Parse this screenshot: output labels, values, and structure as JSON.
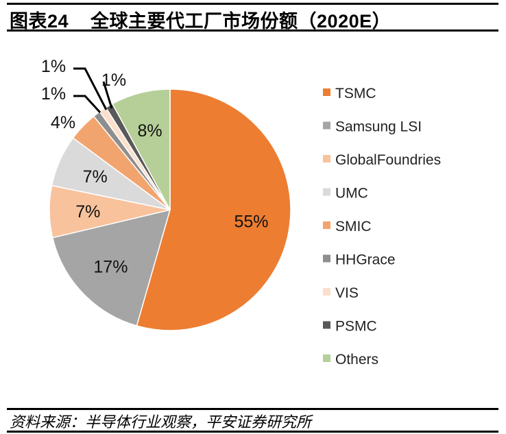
{
  "title": "图表24    全球主要代工厂市场份额（2020E）",
  "source": "资料来源：半导体行业观察，平安证券研究所",
  "chart_data": {
    "type": "pie",
    "title": "全球主要代工厂市场份额（2020E）",
    "start_angle": "12 o'clock",
    "direction": "clockwise",
    "legend_position": "right",
    "categories": [
      "TSMC",
      "Samsung LSI",
      "GlobalFoundries",
      "UMC",
      "SMIC",
      "HHGrace",
      "VIS",
      "PSMC",
      "Others"
    ],
    "values": [
      55,
      17,
      7,
      7,
      4,
      1,
      1,
      1,
      8
    ],
    "labels": [
      "55%",
      "17%",
      "7%",
      "7%",
      "4%",
      "1%",
      "1%",
      "1%",
      "8%"
    ],
    "colors": [
      "#ED7D31",
      "#A5A5A5",
      "#F8C29C",
      "#DADADA",
      "#F2A46F",
      "#8E8E8E",
      "#FBDFCB",
      "#595959",
      "#B6CF98"
    ]
  }
}
